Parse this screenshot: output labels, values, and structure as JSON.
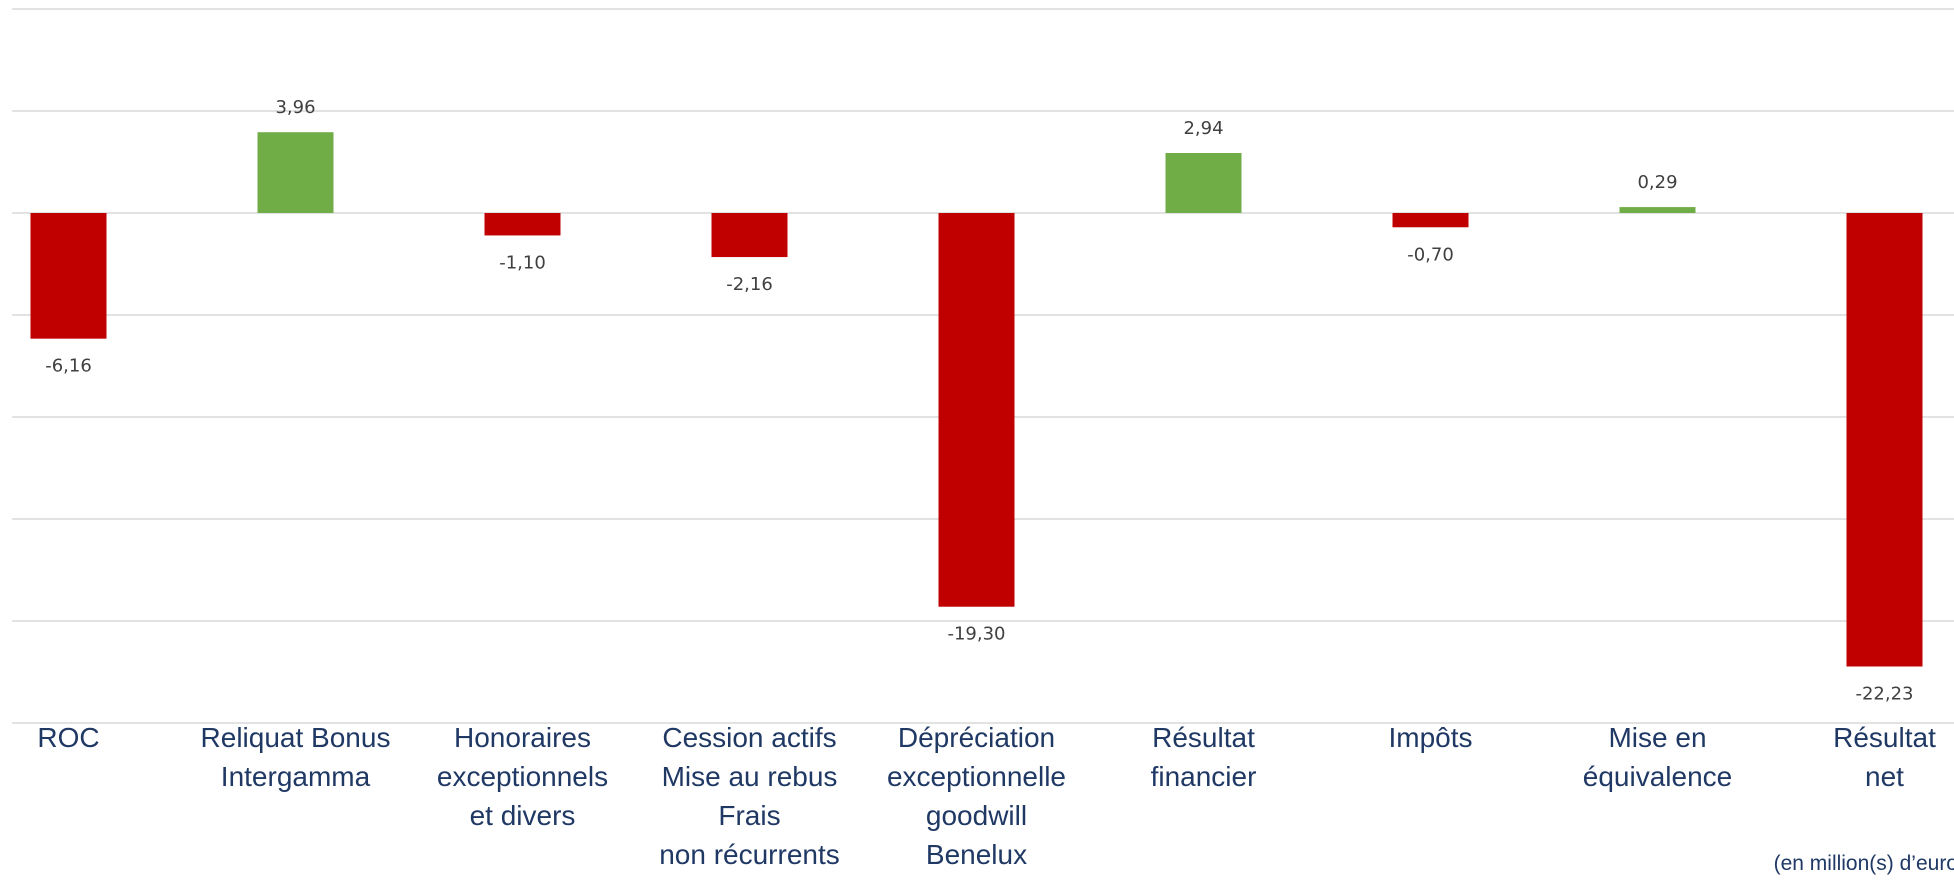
{
  "chart_data": {
    "type": "bar",
    "categories": [
      "ROC",
      "Reliquat Bonus\nIntergamma",
      "Honoraires\nexceptionnels\net divers",
      "Cession actifs\nMise au rebus\nFrais\nnon récurrents",
      "Dépréciation\nexceptionnelle\ngoodwill\nBenelux",
      "Résultat\nfinancier",
      "Impôts",
      "Mise en\néquivalence",
      "Résultat\nnet"
    ],
    "values": [
      -6.16,
      3.96,
      -1.1,
      -2.16,
      -19.3,
      2.94,
      -0.7,
      0.29,
      -22.23
    ],
    "value_labels": [
      "-6,16",
      "3,96",
      "-1,10",
      "-2,16",
      "-19,30",
      "2,94",
      "-0,70",
      "0,29",
      "-22,23"
    ],
    "colors": [
      "#c00000",
      "#70ad47",
      "#c00000",
      "#c00000",
      "#c00000",
      "#70ad47",
      "#c00000",
      "#70ad47",
      "#c00000"
    ],
    "ylim": [
      -25,
      10
    ],
    "yticks": [
      -25,
      -20,
      -15,
      -10,
      -5,
      0,
      5,
      10
    ],
    "grid": true,
    "note": "(en million(s) d’euro"
  }
}
